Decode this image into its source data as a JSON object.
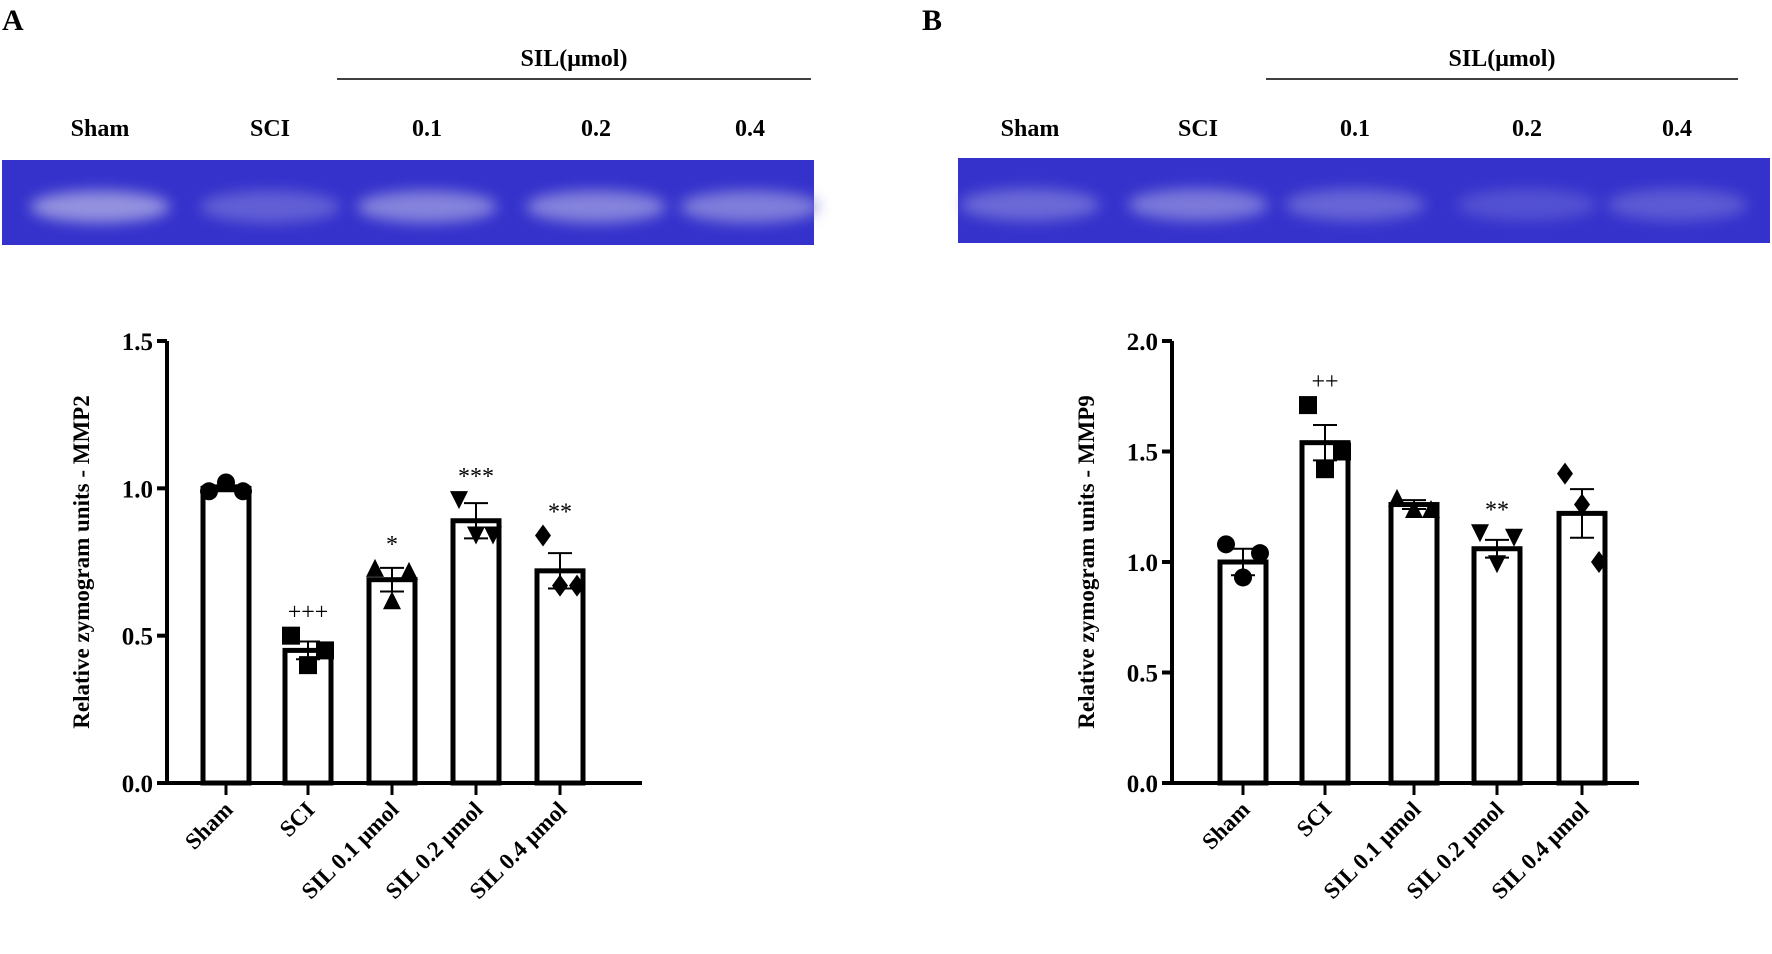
{
  "colors": {
    "gel": "#3532cc",
    "band": "#9a98e0",
    "bar_fill": "#ffffff",
    "ink": "#000000"
  },
  "chart_data": [
    {
      "panel": "A",
      "type": "bar",
      "gel": {
        "header": "SIL(μmol)",
        "lanes": [
          "Sham",
          "SCI",
          "0.1",
          "0.2",
          "0.4"
        ],
        "band_intensity": [
          0.95,
          0.45,
          0.8,
          0.8,
          0.75
        ]
      },
      "categories": [
        "Sham",
        "SCI",
        "SIL 0.1 μmol",
        "SIL 0.2 μmol",
        "SIL 0.4 μmol"
      ],
      "values": [
        1.0,
        0.45,
        0.69,
        0.89,
        0.72
      ],
      "sem": [
        0.01,
        0.03,
        0.04,
        0.06,
        0.06
      ],
      "points": [
        [
          0.99,
          1.02,
          0.99
        ],
        [
          0.5,
          0.4,
          0.45
        ],
        [
          0.73,
          0.62,
          0.72
        ],
        [
          0.96,
          0.84,
          0.84
        ],
        [
          0.84,
          0.67,
          0.67
        ]
      ],
      "markers": [
        "circle",
        "square",
        "triangle",
        "triangle-down",
        "diamond"
      ],
      "annotations": [
        "",
        "+++",
        "*",
        "***",
        "**"
      ],
      "ylabel": "Relative zymogram units - MMP2",
      "ylim": [
        0,
        1.5
      ],
      "yticks": [
        "0.0",
        "0.5",
        "1.0",
        "1.5"
      ],
      "grid": false
    },
    {
      "panel": "B",
      "type": "bar",
      "gel": {
        "header": "SIL(μmol)",
        "lanes": [
          "Sham",
          "SCI",
          "0.1",
          "0.2",
          "0.4"
        ],
        "band_intensity": [
          0.55,
          0.7,
          0.5,
          0.3,
          0.4
        ]
      },
      "categories": [
        "Sham",
        "SCI",
        "SIL 0.1 μmol",
        "SIL 0.2 μmol",
        "SIL 0.4 μmol"
      ],
      "values": [
        1.0,
        1.54,
        1.26,
        1.06,
        1.22
      ],
      "sem": [
        0.06,
        0.08,
        0.02,
        0.04,
        0.11
      ],
      "points": [
        [
          1.08,
          0.93,
          1.04
        ],
        [
          1.71,
          1.42,
          1.5
        ],
        [
          1.29,
          1.24,
          1.24
        ],
        [
          1.13,
          0.99,
          1.11
        ],
        [
          1.4,
          1.26,
          1.0
        ]
      ],
      "markers": [
        "circle",
        "square",
        "triangle",
        "triangle-down",
        "diamond"
      ],
      "annotations": [
        "",
        "++",
        "",
        "**",
        ""
      ],
      "ylabel": "Relative zymogram units - MMP9",
      "ylim": [
        0,
        2.0
      ],
      "yticks": [
        "0.0",
        "0.5",
        "1.0",
        "1.5",
        "2.0"
      ],
      "grid": false
    }
  ]
}
